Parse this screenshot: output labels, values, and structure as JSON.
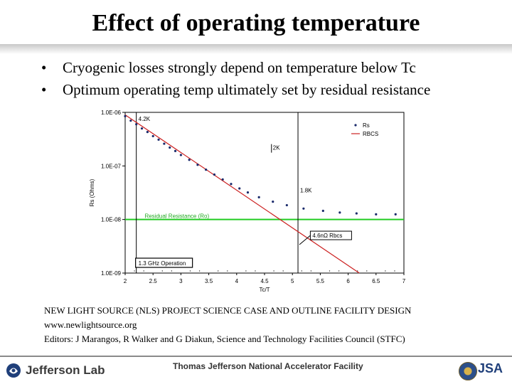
{
  "slide": {
    "title": "Effect of operating temperature",
    "bullets": [
      "Cryogenic losses strongly depend on temperature below Tc",
      "Optimum operating temp ultimately set by residual resistance"
    ],
    "references": [
      "NEW LIGHT SOURCE (NLS) PROJECT SCIENCE CASE AND OUTLINE FACILITY DESIGN",
      "www.newlightsource.org",
      "Editors: J Marangos, R Walker and G Diakun,  Science and Technology Facilities Council (STFC)"
    ]
  },
  "footer": {
    "logo": "Jefferson Lab",
    "facility": "Thomas Jefferson National Accelerator Facility",
    "jsa": "JSA"
  },
  "chart_data": {
    "type": "scatter",
    "xlabel": "Tc/T",
    "ylabel": "Rs (Ohms)",
    "xlim": [
      2,
      7
    ],
    "ylim": [
      1e-09,
      1e-06
    ],
    "yscale": "log",
    "x_ticks": [
      "2",
      "2.5",
      "3",
      "3.5",
      "4",
      "4.5",
      "5",
      "5.5",
      "6",
      "6.5",
      "7"
    ],
    "y_ticks": [
      "1.0E-06",
      "1.0E-07",
      "1.0E-08",
      "1.0E-09"
    ],
    "legend": {
      "placement": "top-right",
      "entries": [
        "Rs",
        "RBCS"
      ]
    },
    "series": [
      {
        "name": "Rs",
        "marker": "dot",
        "color": "#1a2a6b",
        "points": [
          [
            2.0,
            8.5e-07
          ],
          [
            2.1,
            7e-07
          ],
          [
            2.2,
            6e-07
          ],
          [
            2.3,
            5e-07
          ],
          [
            2.4,
            4.3e-07
          ],
          [
            2.5,
            3.6e-07
          ],
          [
            2.6,
            3.1e-07
          ],
          [
            2.7,
            2.6e-07
          ],
          [
            2.8,
            2.2e-07
          ],
          [
            2.9,
            1.9e-07
          ],
          [
            3.0,
            1.6e-07
          ],
          [
            3.15,
            1.3e-07
          ],
          [
            3.3,
            1.05e-07
          ],
          [
            3.45,
            8.5e-08
          ],
          [
            3.6,
            6.9e-08
          ],
          [
            3.75,
            5.6e-08
          ],
          [
            3.9,
            4.6e-08
          ],
          [
            4.05,
            3.8e-08
          ],
          [
            4.2,
            3.2e-08
          ],
          [
            4.4,
            2.6e-08
          ],
          [
            4.65,
            2.15e-08
          ],
          [
            4.9,
            1.85e-08
          ],
          [
            5.2,
            1.6e-08
          ],
          [
            5.55,
            1.45e-08
          ],
          [
            5.85,
            1.35e-08
          ],
          [
            6.15,
            1.3e-08
          ],
          [
            6.5,
            1.25e-08
          ],
          [
            6.85,
            1.25e-08
          ]
        ]
      },
      {
        "name": "RBCS",
        "color": "#cc2020",
        "points": [
          [
            2.0,
            9e-07
          ],
          [
            6.2,
            1e-09
          ]
        ]
      }
    ],
    "reference_lines": [
      {
        "label": "Residual Resistance (Ro)",
        "y": 1e-08,
        "color": "#22cc22"
      }
    ],
    "vertical_markers": [
      {
        "x": 2.2,
        "label": "4.2K"
      },
      {
        "x": 5.1,
        "label": "1.8K"
      }
    ],
    "annotations": [
      {
        "text": "2K",
        "x": 4.65,
        "y": 2e-07,
        "boxed": false
      },
      {
        "text": "4.6nΩ Rbcs",
        "x": 5.5,
        "y": 4.6e-09,
        "boxed": true
      },
      {
        "text": "1.3 GHz Operation",
        "x": 2.85,
        "y": 1.2e-09,
        "boxed": true
      }
    ]
  }
}
